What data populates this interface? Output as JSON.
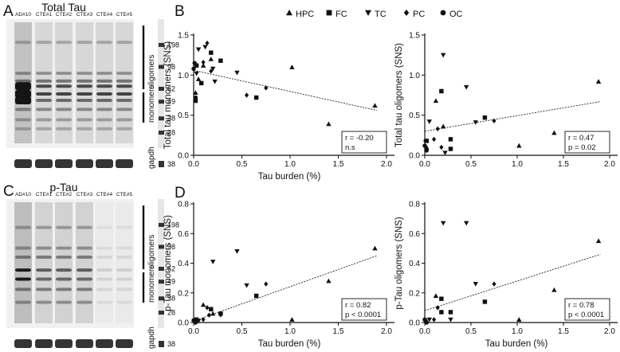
{
  "panel_a": {
    "letter": "A",
    "title": "Total Tau",
    "lanes": [
      "AD#10",
      "CTE#1",
      "CTE#2",
      "CTE#3",
      "CTE#4",
      "CTE#5"
    ],
    "label_oligomers": "oligomers",
    "label_monomers": "monomers",
    "label_gapdh": "gapdh",
    "markers": [
      "198",
      "98",
      "62",
      "49",
      "38",
      "28"
    ],
    "gapdh_marker": "38"
  },
  "panel_c": {
    "letter": "C",
    "title": "p-Tau",
    "lanes": [
      "AD#10",
      "CTE#1",
      "CTE#2",
      "CTE#3",
      "CTE#4",
      "CTE#5"
    ],
    "label_oligomers": "oligomers",
    "label_monomers": "monomers",
    "label_gapdh": "gapdh",
    "markers": [
      "198",
      "98",
      "62",
      "49",
      "38",
      "28"
    ],
    "gapdh_marker": "38"
  },
  "panel_b_letter": "B",
  "panel_d_letter": "D",
  "legend": {
    "entries": [
      {
        "label": "HPC",
        "marker": "triangle-up"
      },
      {
        "label": "FC",
        "marker": "square"
      },
      {
        "label": "TC",
        "marker": "triangle-down"
      },
      {
        "label": "PC",
        "marker": "diamond"
      },
      {
        "label": "OC",
        "marker": "circle"
      }
    ]
  },
  "chart_data": [
    {
      "id": "b1",
      "type": "scatter",
      "xlabel": "Tau burden (%)",
      "ylabel": "Total tau monomers (SNS)",
      "xlim": [
        0,
        2
      ],
      "ylim": [
        0,
        1.5
      ],
      "xticks": [
        "0.0",
        "0.5",
        "1.0",
        "1.5",
        "2.0"
      ],
      "yticks": [
        "0.0",
        "0.5",
        "1.0",
        "1.5"
      ],
      "stats": [
        "r = -0.20",
        "n.s"
      ],
      "trend": [
        [
          0,
          1.06
        ],
        [
          1.9,
          0.56
        ]
      ],
      "points": [
        {
          "m": "triangle-up",
          "x": 0.02,
          "y": 0.78
        },
        {
          "m": "triangle-up",
          "x": 0.1,
          "y": 1.12
        },
        {
          "m": "triangle-up",
          "x": 0.18,
          "y": 1.2
        },
        {
          "m": "triangle-up",
          "x": 1.02,
          "y": 1.1
        },
        {
          "m": "triangle-up",
          "x": 1.4,
          "y": 0.39
        },
        {
          "m": "triangle-up",
          "x": 1.88,
          "y": 0.62
        },
        {
          "m": "triangle-up",
          "x": 0.05,
          "y": 0.95
        },
        {
          "m": "square",
          "x": 0.03,
          "y": 1.12
        },
        {
          "m": "square",
          "x": 0.18,
          "y": 1.28
        },
        {
          "m": "square",
          "x": 0.28,
          "y": 1.18
        },
        {
          "m": "square",
          "x": 0.08,
          "y": 0.9
        },
        {
          "m": "square",
          "x": 0.65,
          "y": 0.72
        },
        {
          "m": "square",
          "x": 0.02,
          "y": 0.68
        },
        {
          "m": "triangle-down",
          "x": 0.05,
          "y": 1.32
        },
        {
          "m": "triangle-down",
          "x": 0.12,
          "y": 1.35
        },
        {
          "m": "triangle-down",
          "x": 0.2,
          "y": 1.08
        },
        {
          "m": "triangle-down",
          "x": 0.45,
          "y": 1.03
        },
        {
          "m": "triangle-down",
          "x": 0.22,
          "y": 0.92
        },
        {
          "m": "triangle-down",
          "x": 0.03,
          "y": 1.02
        },
        {
          "m": "diamond",
          "x": 0.14,
          "y": 1.4
        },
        {
          "m": "diamond",
          "x": 0.55,
          "y": 0.75
        },
        {
          "m": "diamond",
          "x": 0.75,
          "y": 0.84
        },
        {
          "m": "diamond",
          "x": 0.18,
          "y": 1.05
        },
        {
          "m": "diamond",
          "x": 0.1,
          "y": 1.16
        },
        {
          "m": "circle",
          "x": 0.01,
          "y": 1.15
        },
        {
          "m": "circle",
          "x": 0.02,
          "y": 0.72
        },
        {
          "m": "circle",
          "x": 0.0,
          "y": 1.08
        }
      ]
    },
    {
      "id": "b2",
      "type": "scatter",
      "xlabel": "",
      "ylabel": "Total tau oligomers (SNS)",
      "xlim": [
        0,
        2
      ],
      "ylim": [
        0,
        1.5
      ],
      "xticks": [
        "0.0",
        "0.5",
        "1.0",
        "1.5",
        "2.0"
      ],
      "yticks": [
        "0.0",
        "0.5",
        "1.0",
        "1.5"
      ],
      "stats": [
        "r = 0.47",
        "p = 0.02"
      ],
      "trend": [
        [
          0,
          0.3
        ],
        [
          1.9,
          0.67
        ]
      ],
      "points": [
        {
          "m": "triangle-up",
          "x": 0.12,
          "y": 0.68
        },
        {
          "m": "triangle-up",
          "x": 0.02,
          "y": 0.1
        },
        {
          "m": "triangle-up",
          "x": 1.02,
          "y": 0.12
        },
        {
          "m": "triangle-up",
          "x": 1.4,
          "y": 0.28
        },
        {
          "m": "triangle-up",
          "x": 1.88,
          "y": 0.92
        },
        {
          "m": "triangle-up",
          "x": 0.2,
          "y": 0.36
        },
        {
          "m": "square",
          "x": 0.18,
          "y": 0.8
        },
        {
          "m": "square",
          "x": 0.28,
          "y": 0.2
        },
        {
          "m": "square",
          "x": 0.65,
          "y": 0.47
        },
        {
          "m": "square",
          "x": 0.02,
          "y": 0.18
        },
        {
          "m": "square",
          "x": 0.28,
          "y": 0.08
        },
        {
          "m": "triangle-down",
          "x": 0.2,
          "y": 1.25
        },
        {
          "m": "triangle-down",
          "x": 0.45,
          "y": 0.85
        },
        {
          "m": "triangle-down",
          "x": 0.05,
          "y": 0.42
        },
        {
          "m": "triangle-down",
          "x": 0.55,
          "y": 0.41
        },
        {
          "m": "triangle-down",
          "x": 0.22,
          "y": 0.03
        },
        {
          "m": "diamond",
          "x": 0.14,
          "y": 0.33
        },
        {
          "m": "diamond",
          "x": 0.75,
          "y": 0.43
        },
        {
          "m": "diamond",
          "x": 0.18,
          "y": 0.1
        },
        {
          "m": "diamond",
          "x": 0.1,
          "y": 0.2
        },
        {
          "m": "circle",
          "x": 0.01,
          "y": 0.18
        },
        {
          "m": "circle",
          "x": 0.02,
          "y": 0.06
        },
        {
          "m": "circle",
          "x": 0.0,
          "y": 0.12
        }
      ]
    },
    {
      "id": "d1",
      "type": "scatter",
      "xlabel": "Tau burden (%)",
      "ylabel": "p-Tau monomers (SNS)",
      "xlim": [
        0,
        2
      ],
      "ylim": [
        0,
        0.8
      ],
      "xticks": [
        "0.0",
        "0.5",
        "1.0",
        "1.5",
        "2.0"
      ],
      "yticks": [
        "0.0",
        "0.2",
        "0.4",
        "0.6",
        "0.8"
      ],
      "stats": [
        "r = 0.82",
        "p < 0.0001"
      ],
      "trend": [
        [
          0,
          0.01
        ],
        [
          1.9,
          0.45
        ]
      ],
      "points": [
        {
          "m": "triangle-up",
          "x": 0.1,
          "y": 0.12
        },
        {
          "m": "triangle-up",
          "x": 1.02,
          "y": 0.02
        },
        {
          "m": "triangle-up",
          "x": 1.4,
          "y": 0.28
        },
        {
          "m": "triangle-up",
          "x": 1.88,
          "y": 0.5
        },
        {
          "m": "triangle-up",
          "x": 0.02,
          "y": 0.02
        },
        {
          "m": "triangle-up",
          "x": 0.2,
          "y": 0.06
        },
        {
          "m": "square",
          "x": 0.18,
          "y": 0.09
        },
        {
          "m": "square",
          "x": 0.28,
          "y": 0.06
        },
        {
          "m": "square",
          "x": 0.65,
          "y": 0.18
        },
        {
          "m": "square",
          "x": 0.03,
          "y": 0.02
        },
        {
          "m": "triangle-down",
          "x": 0.2,
          "y": 0.41
        },
        {
          "m": "triangle-down",
          "x": 0.45,
          "y": 0.48
        },
        {
          "m": "triangle-down",
          "x": 0.55,
          "y": 0.25
        },
        {
          "m": "triangle-down",
          "x": 0.28,
          "y": 0.05
        },
        {
          "m": "triangle-down",
          "x": 0.05,
          "y": 0.01
        },
        {
          "m": "diamond",
          "x": 0.75,
          "y": 0.26
        },
        {
          "m": "diamond",
          "x": 0.14,
          "y": 0.1
        },
        {
          "m": "diamond",
          "x": 0.1,
          "y": 0.02
        },
        {
          "m": "diamond",
          "x": 0.16,
          "y": 0.05
        },
        {
          "m": "circle",
          "x": 0.01,
          "y": 0.01
        },
        {
          "m": "circle",
          "x": 0.02,
          "y": 0.0
        },
        {
          "m": "circle",
          "x": 0.0,
          "y": 0.015
        }
      ]
    },
    {
      "id": "d2",
      "type": "scatter",
      "xlabel": "Tau burden (%)",
      "ylabel": "p-Tau oligomers (SNS)",
      "xlim": [
        0,
        2
      ],
      "ylim": [
        0,
        0.8
      ],
      "xticks": [
        "0.0",
        "0.5",
        "1.0",
        "1.5",
        "2.0"
      ],
      "yticks": [
        "0.0",
        "0.2",
        "0.4",
        "0.6",
        "0.8"
      ],
      "stats": [
        "r = 0.78",
        "p < 0.0001"
      ],
      "trend": [
        [
          0,
          0.08
        ],
        [
          1.9,
          0.46
        ]
      ],
      "points": [
        {
          "m": "triangle-up",
          "x": 0.12,
          "y": 0.18
        },
        {
          "m": "triangle-up",
          "x": 1.02,
          "y": 0.02
        },
        {
          "m": "triangle-up",
          "x": 1.4,
          "y": 0.22
        },
        {
          "m": "triangle-up",
          "x": 1.88,
          "y": 0.55
        },
        {
          "m": "triangle-up",
          "x": 0.02,
          "y": 0.01
        },
        {
          "m": "square",
          "x": 0.18,
          "y": 0.16
        },
        {
          "m": "square",
          "x": 0.28,
          "y": 0.07
        },
        {
          "m": "square",
          "x": 0.65,
          "y": 0.14
        },
        {
          "m": "square",
          "x": 0.18,
          "y": 0.07
        },
        {
          "m": "triangle-down",
          "x": 0.2,
          "y": 0.67
        },
        {
          "m": "triangle-down",
          "x": 0.45,
          "y": 0.67
        },
        {
          "m": "triangle-down",
          "x": 0.55,
          "y": 0.26
        },
        {
          "m": "triangle-down",
          "x": 0.28,
          "y": 0.02
        },
        {
          "m": "triangle-down",
          "x": 0.05,
          "y": 0.02
        },
        {
          "m": "diamond",
          "x": 0.75,
          "y": 0.26
        },
        {
          "m": "diamond",
          "x": 0.14,
          "y": 0.1
        },
        {
          "m": "diamond",
          "x": 0.1,
          "y": 0.02
        },
        {
          "m": "circle",
          "x": 0.01,
          "y": 0.01
        },
        {
          "m": "circle",
          "x": 0.02,
          "y": 0.0
        },
        {
          "m": "circle",
          "x": 0.0,
          "y": 0.02
        }
      ]
    }
  ]
}
